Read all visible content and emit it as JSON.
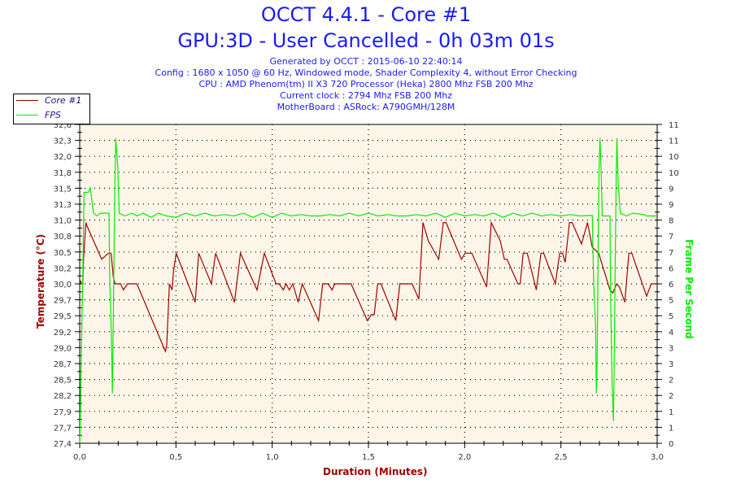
{
  "header": {
    "title_line1": "OCCT 4.4.1 - Core #1",
    "title_line2": "GPU:3D - User Cancelled - 0h 03m 01s",
    "info": [
      "Generated by OCCT : 2015-06-10 22:40:14",
      "Config : 1680 x 1050 @ 60 Hz, Windowed mode, Shader Complexity 4, without Error Checking",
      "CPU : AMD Phenom(tm) II X3 720 Processor (Heka) 2800 Mhz FSB 200 Mhz",
      "Current clock : 2794 Mhz FSB 200 Mhz",
      "MotherBoard : ASRock: A790GMH/128M"
    ]
  },
  "colors": {
    "title": "#1a1aff",
    "temp": "#a00000",
    "fps": "#00ee00",
    "plot_bg": "#fdf6e8"
  },
  "chart_data": {
    "type": "line",
    "xlabel": "Duration (Minutes)",
    "ylabel": "Temperature (°C)",
    "y2label": "Frame Per Second",
    "xlim": [
      0,
      3
    ],
    "ylim": [
      27.4,
      32.6
    ],
    "y2lim": [
      0,
      11.5
    ],
    "grid": true,
    "legend_position": "top-left",
    "x_tick_labels": [
      "0,0",
      "0,5",
      "1,0",
      "1,5",
      "2,0",
      "2,5",
      "3,0"
    ],
    "y_tick_labels": [
      "32,6",
      "32,3",
      "32,0",
      "31,8",
      "31,5",
      "31,3",
      "31,0",
      "30,8",
      "30,5",
      "30,2",
      "30,0",
      "29,7",
      "29,5",
      "29,2",
      "29,0",
      "28,7",
      "28,5",
      "28,2",
      "27,9",
      "27,7",
      "27,4"
    ],
    "y2_tick_labels": [
      "11",
      "11",
      "10",
      "10",
      "9",
      "9",
      "8",
      "7",
      "7",
      "6",
      "6",
      "5",
      "5",
      "4",
      "3",
      "3",
      "2",
      "2",
      "1",
      "1",
      "0"
    ],
    "legend": [
      "Core #1",
      "FPS"
    ],
    "series": [
      {
        "name": "Core #1",
        "axis": "left",
        "points": [
          [
            0.001,
            30.0
          ],
          [
            0.005,
            30.05
          ],
          [
            0.009,
            30.0
          ],
          [
            0.016,
            30.0
          ],
          [
            0.02,
            30.4
          ],
          [
            0.032,
            31.0
          ],
          [
            0.037,
            30.95
          ],
          [
            0.114,
            30.4
          ],
          [
            0.149,
            30.5
          ],
          [
            0.163,
            30.5
          ],
          [
            0.175,
            30.1
          ],
          [
            0.185,
            30.0
          ],
          [
            0.213,
            30.0
          ],
          [
            0.227,
            29.9
          ],
          [
            0.248,
            30.0
          ],
          [
            0.297,
            30.0
          ],
          [
            0.445,
            28.9
          ],
          [
            0.452,
            29.0
          ],
          [
            0.466,
            30.0
          ],
          [
            0.48,
            29.9
          ],
          [
            0.487,
            30.2
          ],
          [
            0.501,
            30.5
          ],
          [
            0.6,
            29.7
          ],
          [
            0.618,
            30.5
          ],
          [
            0.684,
            30.0
          ],
          [
            0.706,
            30.5
          ],
          [
            0.804,
            29.7
          ],
          [
            0.835,
            30.5
          ],
          [
            0.921,
            29.9
          ],
          [
            0.959,
            30.5
          ],
          [
            1.02,
            30.0
          ],
          [
            1.036,
            30.0
          ],
          [
            1.058,
            29.9
          ],
          [
            1.072,
            30.0
          ],
          [
            1.089,
            29.9
          ],
          [
            1.107,
            30.0
          ],
          [
            1.135,
            29.7
          ],
          [
            1.156,
            30.0
          ],
          [
            1.241,
            29.4
          ],
          [
            1.262,
            30.0
          ],
          [
            1.29,
            30.0
          ],
          [
            1.311,
            29.9
          ],
          [
            1.325,
            30.0
          ],
          [
            1.41,
            30.0
          ],
          [
            1.494,
            29.4
          ],
          [
            1.515,
            29.5
          ],
          [
            1.53,
            29.5
          ],
          [
            1.548,
            30.0
          ],
          [
            1.565,
            30.0
          ],
          [
            1.642,
            29.4
          ],
          [
            1.663,
            30.0
          ],
          [
            1.727,
            30.0
          ],
          [
            1.762,
            29.75
          ],
          [
            1.783,
            31.0
          ],
          [
            1.811,
            30.7
          ],
          [
            1.865,
            30.4
          ],
          [
            1.889,
            31.0
          ],
          [
            1.903,
            31.0
          ],
          [
            1.983,
            30.4
          ],
          [
            2.002,
            30.5
          ],
          [
            2.037,
            30.5
          ],
          [
            2.114,
            29.95
          ],
          [
            2.138,
            31.0
          ],
          [
            2.185,
            30.7
          ],
          [
            2.206,
            30.4
          ],
          [
            2.22,
            30.4
          ],
          [
            2.276,
            30.0
          ],
          [
            2.288,
            30.0
          ],
          [
            2.304,
            30.5
          ],
          [
            2.325,
            30.5
          ],
          [
            2.372,
            29.9
          ],
          [
            2.396,
            30.5
          ],
          [
            2.41,
            30.5
          ],
          [
            2.471,
            30.0
          ],
          [
            2.494,
            30.5
          ],
          [
            2.508,
            30.5
          ],
          [
            2.522,
            30.35
          ],
          [
            2.544,
            31.0
          ],
          [
            2.558,
            31.0
          ],
          [
            2.607,
            30.65
          ],
          [
            2.638,
            31.0
          ],
          [
            2.663,
            30.6
          ],
          [
            2.696,
            30.5
          ],
          [
            2.755,
            29.9
          ],
          [
            2.769,
            29.85
          ],
          [
            2.79,
            30.0
          ],
          [
            2.804,
            29.95
          ],
          [
            2.832,
            29.7
          ],
          [
            2.853,
            30.5
          ],
          [
            2.868,
            30.5
          ],
          [
            2.945,
            29.8
          ],
          [
            2.969,
            30.0
          ],
          [
            3.0,
            30.0
          ]
        ]
      },
      {
        "name": "FPS",
        "axis": "right",
        "points": [
          [
            0.001,
            0
          ],
          [
            0.009,
            3.4
          ],
          [
            0.016,
            6.0
          ],
          [
            0.02,
            7.9
          ],
          [
            0.023,
            9.05
          ],
          [
            0.044,
            9.05
          ],
          [
            0.055,
            9.2
          ],
          [
            0.072,
            8.3
          ],
          [
            0.09,
            8.2
          ],
          [
            0.107,
            8.3
          ],
          [
            0.152,
            8.3
          ],
          [
            0.156,
            5.9
          ],
          [
            0.163,
            4.3
          ],
          [
            0.168,
            2.5
          ],
          [
            0.17,
            1.8
          ],
          [
            0.177,
            6.0
          ],
          [
            0.182,
            9.05
          ],
          [
            0.187,
            11.0
          ],
          [
            0.191,
            10.6
          ],
          [
            0.198,
            9.9
          ],
          [
            0.205,
            8.3
          ],
          [
            0.234,
            8.2
          ],
          [
            0.27,
            8.3
          ],
          [
            0.3,
            8.2
          ],
          [
            0.33,
            8.3
          ],
          [
            0.37,
            8.15
          ],
          [
            0.41,
            8.3
          ],
          [
            0.45,
            8.2
          ],
          [
            0.5,
            8.15
          ],
          [
            0.55,
            8.3
          ],
          [
            0.6,
            8.2
          ],
          [
            0.65,
            8.3
          ],
          [
            0.7,
            8.2
          ],
          [
            0.75,
            8.25
          ],
          [
            0.8,
            8.2
          ],
          [
            0.85,
            8.3
          ],
          [
            0.9,
            8.15
          ],
          [
            0.95,
            8.3
          ],
          [
            1.0,
            8.15
          ],
          [
            1.05,
            8.3
          ],
          [
            1.1,
            8.2
          ],
          [
            1.15,
            8.25
          ],
          [
            1.2,
            8.2
          ],
          [
            1.25,
            8.2
          ],
          [
            1.3,
            8.25
          ],
          [
            1.35,
            8.2
          ],
          [
            1.4,
            8.3
          ],
          [
            1.45,
            8.2
          ],
          [
            1.5,
            8.3
          ],
          [
            1.55,
            8.2
          ],
          [
            1.6,
            8.25
          ],
          [
            1.65,
            8.2
          ],
          [
            1.7,
            8.2
          ],
          [
            1.75,
            8.25
          ],
          [
            1.8,
            8.2
          ],
          [
            1.85,
            8.3
          ],
          [
            1.9,
            8.15
          ],
          [
            1.95,
            8.3
          ],
          [
            2.0,
            8.2
          ],
          [
            2.05,
            8.25
          ],
          [
            2.1,
            8.2
          ],
          [
            2.15,
            8.3
          ],
          [
            2.2,
            8.15
          ],
          [
            2.25,
            8.3
          ],
          [
            2.3,
            8.2
          ],
          [
            2.35,
            8.3
          ],
          [
            2.4,
            8.2
          ],
          [
            2.45,
            8.25
          ],
          [
            2.5,
            8.2
          ],
          [
            2.55,
            8.25
          ],
          [
            2.6,
            8.2
          ],
          [
            2.663,
            8.22
          ],
          [
            2.67,
            5.8
          ],
          [
            2.68,
            4.2
          ],
          [
            2.684,
            1.8
          ],
          [
            2.688,
            3.0
          ],
          [
            2.694,
            7.5
          ],
          [
            2.698,
            9.8
          ],
          [
            2.703,
            11.0
          ],
          [
            2.708,
            10.0
          ],
          [
            2.715,
            8.2
          ],
          [
            2.755,
            8.2
          ],
          [
            2.758,
            5.4
          ],
          [
            2.766,
            2.1
          ],
          [
            2.773,
            0.8
          ],
          [
            2.777,
            3.0
          ],
          [
            2.783,
            7.0
          ],
          [
            2.787,
            9.6
          ],
          [
            2.791,
            11.0
          ],
          [
            2.797,
            9.4
          ],
          [
            2.808,
            8.3
          ],
          [
            2.839,
            8.2
          ],
          [
            2.875,
            8.3
          ],
          [
            2.931,
            8.25
          ],
          [
            2.945,
            8.2
          ],
          [
            3.0,
            8.2
          ]
        ]
      }
    ]
  }
}
